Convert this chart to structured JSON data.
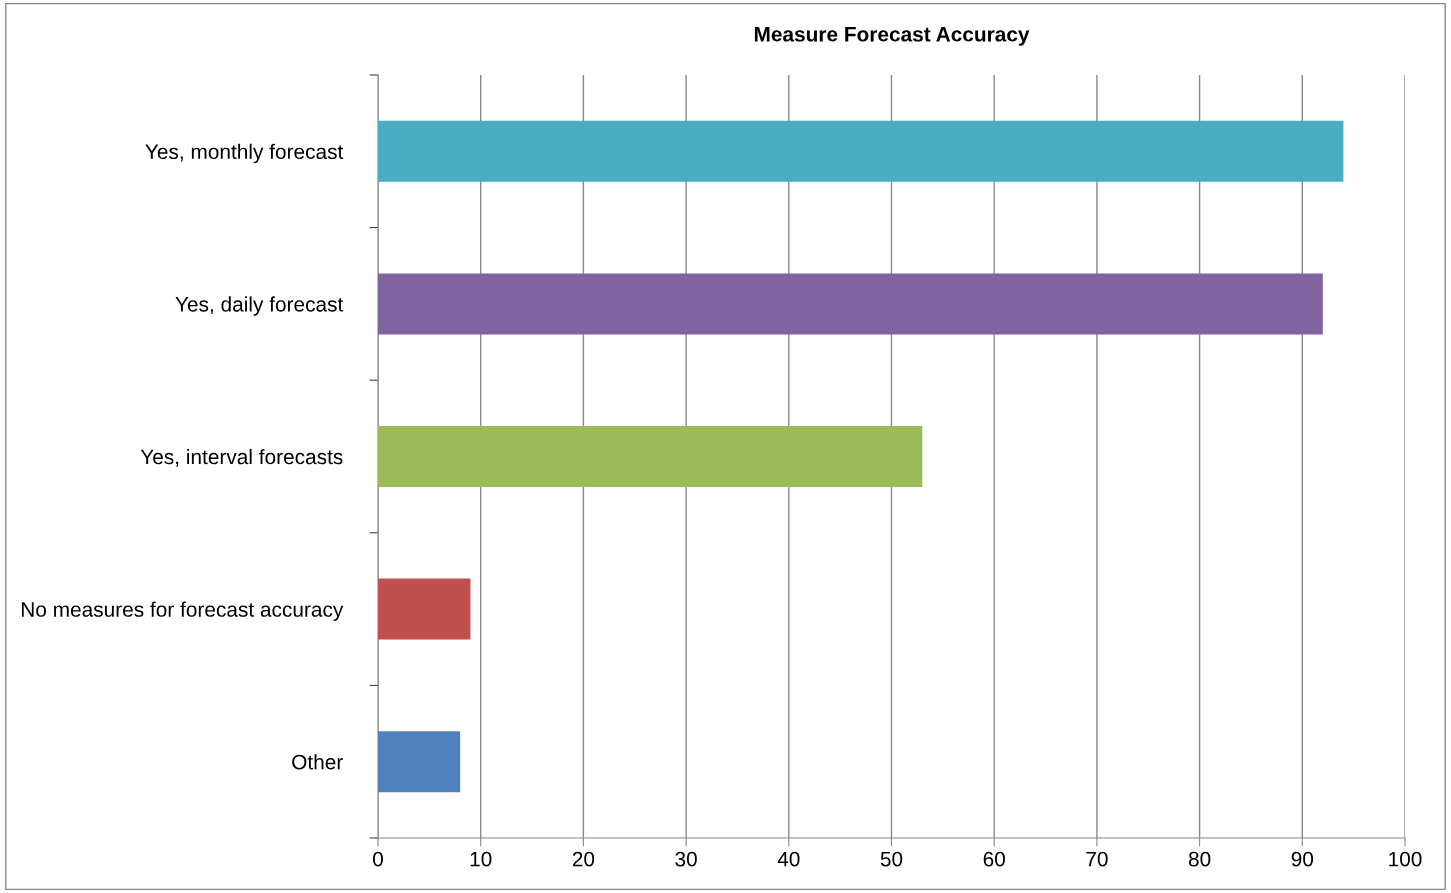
{
  "chart_data": {
    "type": "bar",
    "orientation": "horizontal",
    "title": "Measure Forecast Accuracy",
    "categories": [
      "Yes, monthly forecast",
      "Yes, daily forecast",
      "Yes, interval forecasts",
      "No measures for forecast accuracy",
      "Other"
    ],
    "values": [
      94,
      92,
      53,
      9,
      8
    ],
    "colors": [
      "#4bacc6",
      "#8064a2",
      "#9bbb59",
      "#c0504d",
      "#4f81bd"
    ],
    "xlim": [
      0,
      100
    ],
    "xticks": [
      0,
      10,
      20,
      30,
      40,
      50,
      60,
      70,
      80,
      90,
      100
    ],
    "grid": "x",
    "legend": false
  }
}
